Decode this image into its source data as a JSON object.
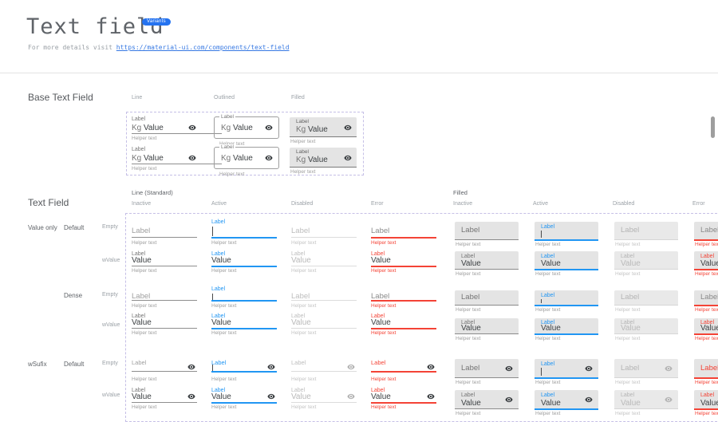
{
  "page": {
    "title": "Text field",
    "badge": "Variants",
    "subtitle_prefix": "For more details visit ",
    "subtitle_link": "https://material-ui.com/components/text-field"
  },
  "base_section": {
    "title": "Base Text Field",
    "variants": [
      "Line",
      "Outlined",
      "Filled"
    ]
  },
  "matrix_section": {
    "title": "Text Field",
    "groups": [
      {
        "label": "Line (Standard)"
      },
      {
        "label": "Filled"
      }
    ],
    "states": [
      "Inactive",
      "Active",
      "Disabled",
      "Error"
    ],
    "row_groups": [
      {
        "category": "Value only",
        "variant": "Default",
        "rows": [
          "Empty",
          "wValue"
        ]
      },
      {
        "category": "",
        "variant": "Dense",
        "rows": [
          "Empty",
          "wValue"
        ]
      },
      {
        "category": "wSufix",
        "variant": "Default",
        "rows": [
          "Empty",
          "wValue"
        ]
      }
    ]
  },
  "field": {
    "label": "Label",
    "value": "Value",
    "helper": "Helper text",
    "prefix": "Kg"
  },
  "icons": {
    "suffix": "visibility-icon"
  },
  "colors": {
    "accent": "#2196f3",
    "error": "#f44336",
    "badge": "#2573f0",
    "link": "#3779e3",
    "filled_bg": "#e4e4e4"
  }
}
